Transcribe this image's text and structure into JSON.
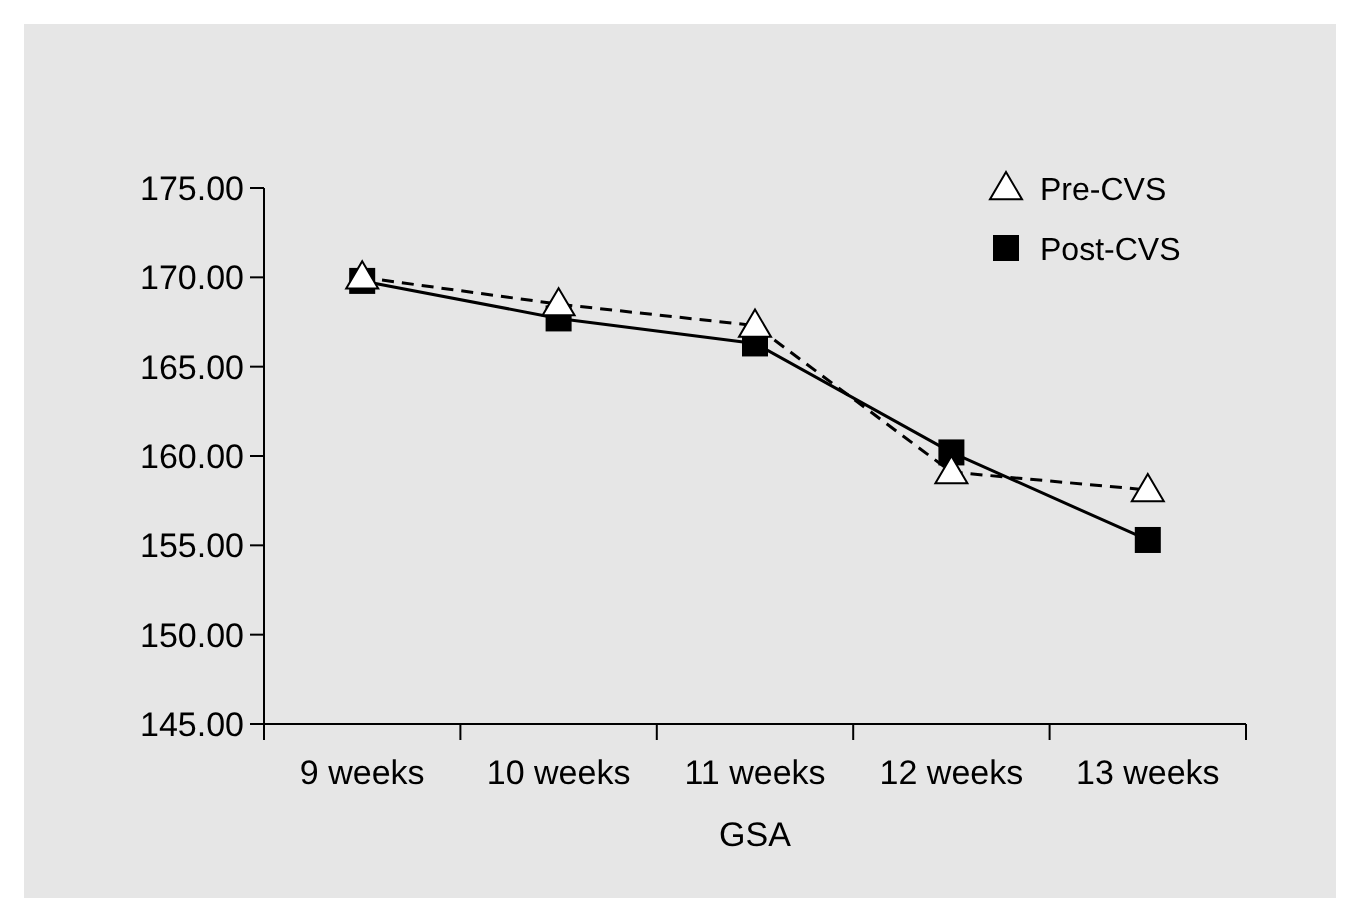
{
  "chart_data": {
    "type": "line",
    "xlabel": "GSA",
    "categories": [
      "9 weeks",
      "10 weeks",
      "11 weeks",
      "12 weeks",
      "13 weeks"
    ],
    "series": [
      {
        "name": "Pre-CVS",
        "color": "#000000",
        "marker": "triangle",
        "line_style": "dashed",
        "values": [
          170.0,
          168.5,
          167.3,
          159.1,
          158.1
        ]
      },
      {
        "name": "Post-CVS",
        "color": "#000000",
        "marker": "square",
        "line_style": "solid",
        "values": [
          169.8,
          167.7,
          166.3,
          160.2,
          155.3
        ]
      }
    ],
    "ylim": [
      145,
      175
    ],
    "yticks": [
      {
        "value": 145,
        "label": "145.00"
      },
      {
        "value": 150,
        "label": "150.00"
      },
      {
        "value": 155,
        "label": "155.00"
      },
      {
        "value": 160,
        "label": "160.00"
      },
      {
        "value": 165,
        "label": "165.00"
      },
      {
        "value": 170,
        "label": "170.00"
      },
      {
        "value": 175,
        "label": "175.00"
      }
    ],
    "grid": false,
    "legend": "top right"
  }
}
